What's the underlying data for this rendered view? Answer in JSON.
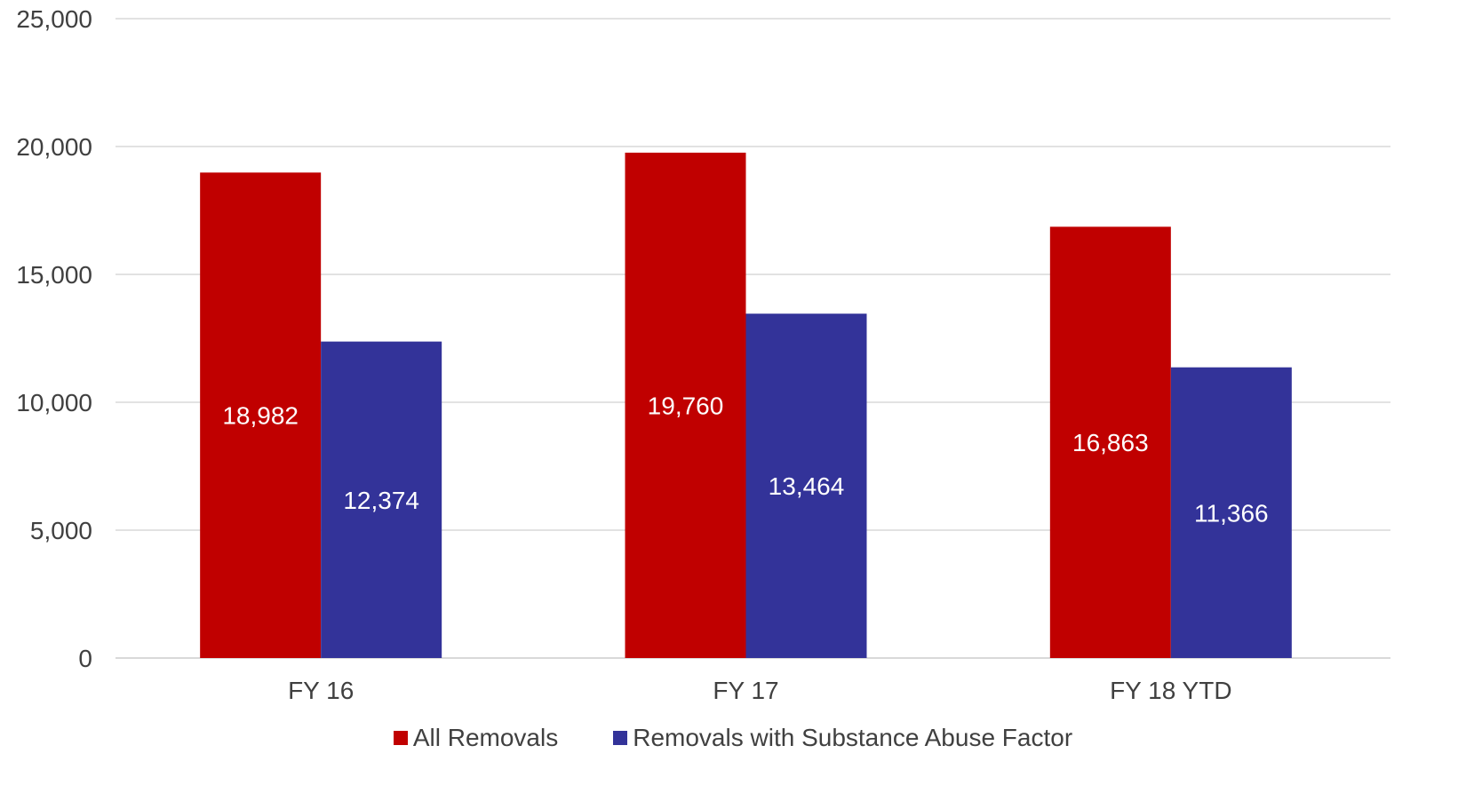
{
  "chart_data": {
    "type": "bar",
    "title": "",
    "xlabel": "",
    "ylabel": "",
    "categories": [
      "FY 16",
      "FY 17",
      "FY 18 YTD"
    ],
    "series": [
      {
        "name": "All Removals",
        "color": "#C00000",
        "values": [
          18982,
          19760,
          16863
        ],
        "labels": [
          "18,982",
          "19,760",
          "16,863"
        ]
      },
      {
        "name": "Removals with Substance Abuse Factor",
        "color": "#333399",
        "values": [
          12374,
          13464,
          11366
        ],
        "labels": [
          "12,374",
          "13,464",
          "11,366"
        ]
      }
    ],
    "ylim": [
      0,
      25000
    ],
    "yticks": [
      0,
      5000,
      10000,
      15000,
      20000,
      25000
    ],
    "ytick_labels": [
      "0",
      "5,000",
      "10,000",
      "15,000",
      "20,000",
      "25,000"
    ],
    "grid": true,
    "legend_position": "bottom"
  }
}
